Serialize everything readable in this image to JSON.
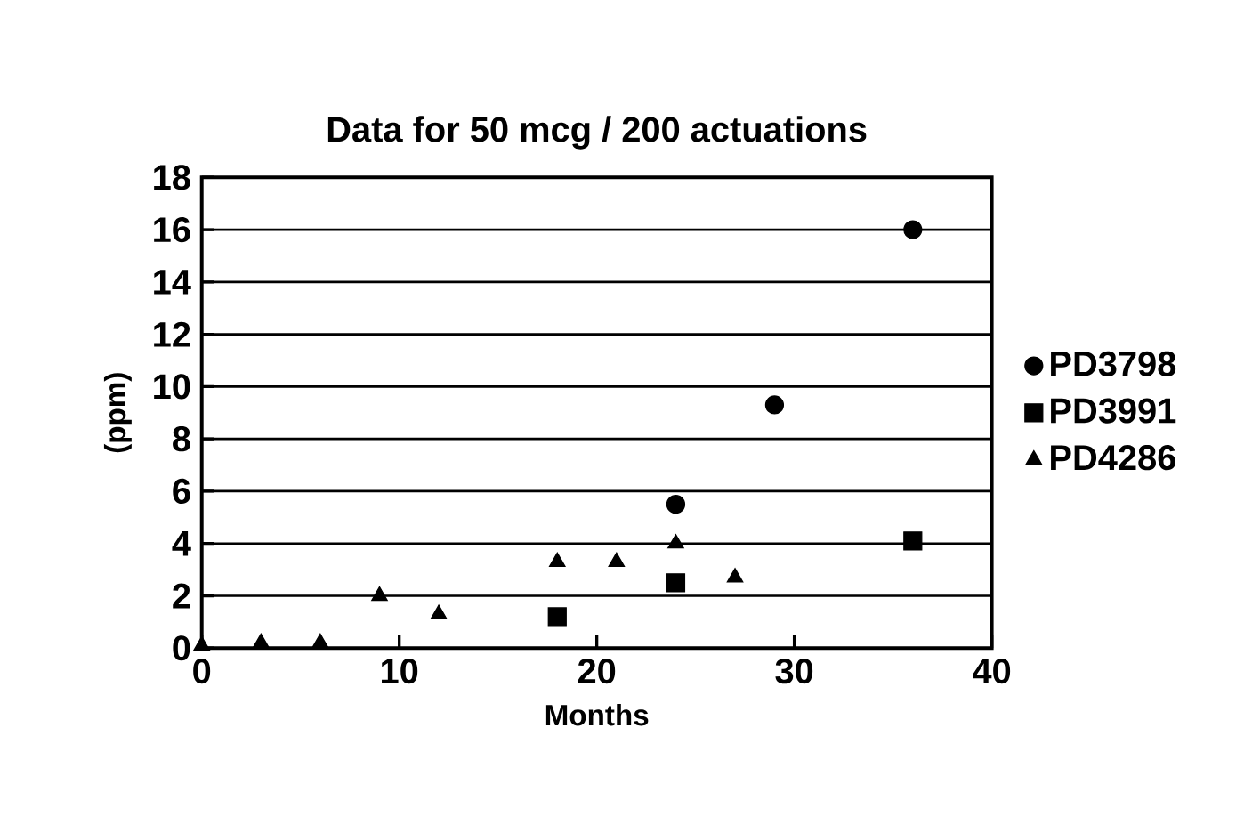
{
  "chart_data": {
    "type": "scatter",
    "title": "Data for 50 mcg / 200 actuations",
    "xlabel": "Months",
    "ylabel": "(ppm)",
    "xlim": [
      0,
      40
    ],
    "xticks": [
      0,
      10,
      20,
      30,
      40
    ],
    "ylim": [
      0,
      18
    ],
    "yticks": [
      0,
      2,
      4,
      6,
      8,
      10,
      12,
      14,
      16,
      18
    ],
    "grid": "y",
    "legend": "right",
    "series": [
      {
        "name": "PD3798",
        "color": "#000000",
        "marker": "circle",
        "x": [
          24,
          29,
          36
        ],
        "values": [
          5.5,
          9.3,
          16
        ]
      },
      {
        "name": "PD3991",
        "color": "#000000",
        "marker": "square",
        "x": [
          18,
          24,
          36
        ],
        "values": [
          1.2,
          2.5,
          4.1
        ]
      },
      {
        "name": "PD4286",
        "color": "#000000",
        "marker": "triangle",
        "x": [
          0,
          3,
          6,
          9,
          12,
          18,
          21,
          24,
          27
        ],
        "values": [
          0.1,
          0.2,
          0.2,
          2.0,
          1.3,
          3.3,
          3.3,
          4.0,
          2.7
        ]
      }
    ]
  }
}
